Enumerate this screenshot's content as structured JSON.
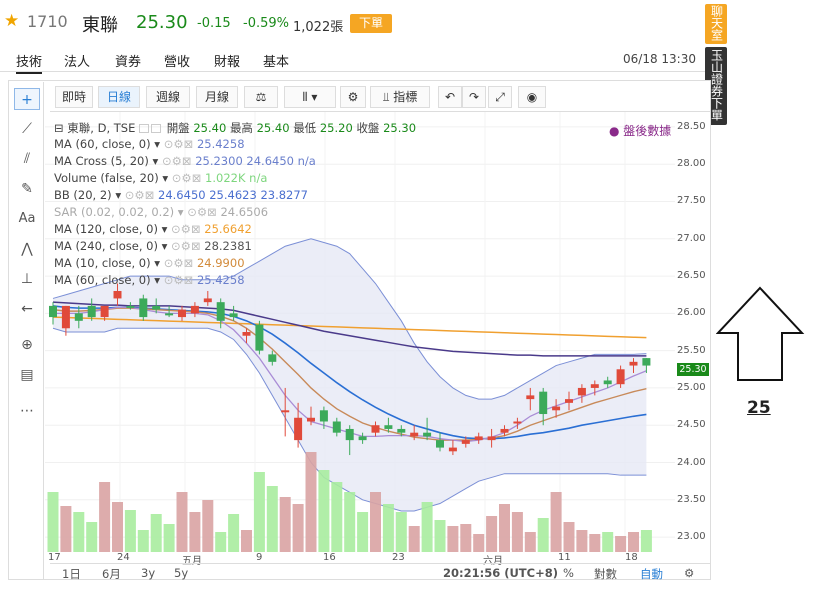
{
  "header": {
    "code": "1710",
    "name": "東聯",
    "price": "25.30",
    "change": "-0.15",
    "percent": "-0.59%",
    "volume": "1,022張",
    "sell_label": "下單"
  },
  "tabs": [
    "技術",
    "法人",
    "資券",
    "營收",
    "財報",
    "基本"
  ],
  "datetime": "06/18 13:30",
  "side_buttons": {
    "chat": "聊天室",
    "order": "玉山證券下單"
  },
  "toolbar": {
    "periods": [
      "即時",
      "日線",
      "週線",
      "月線"
    ],
    "indicators_label": "指標"
  },
  "legend": {
    "main": {
      "label": "東聯, D, TSE",
      "open_label": "開盤",
      "open": "25.40",
      "high_label": "最高",
      "high": "25.40",
      "low_label": "最低",
      "low": "25.20",
      "close_label": "收盤",
      "close": "25.30"
    },
    "after_hours": "盤後數據",
    "rows": [
      {
        "label": "MA (60, close, 0)",
        "values": "25.4258",
        "color": "#6a7fcc"
      },
      {
        "label": "MA Cross (5, 20)",
        "values": "25.2300  24.6450  n/a",
        "color": "#6a7fcc"
      },
      {
        "label": "Volume (false, 20)",
        "values": "1.022K  n/a",
        "color": "#7ed67e"
      },
      {
        "label": "BB (20, 2)",
        "values": "24.6450  25.4623  23.8277",
        "color": "#4a6fcf"
      },
      {
        "label": "SAR (0.02, 0.02, 0.2)",
        "values": "24.6506",
        "color": "#aaaaaa"
      },
      {
        "label": "MA (120, close, 0)",
        "values": "25.6642",
        "color": "#f0a030"
      },
      {
        "label": "MA (240, close, 0)",
        "values": "28.2381",
        "color": "#555555"
      },
      {
        "label": "MA (10, close, 0)",
        "values": "24.9900",
        "color": "#d28a3a"
      },
      {
        "label": "MA (60, close, 0)",
        "values": "25.4258",
        "color": "#6a7fcc"
      }
    ]
  },
  "price_axis": [
    "28.50",
    "28.00",
    "27.50",
    "27.00",
    "26.50",
    "26.00",
    "25.50",
    "25.00",
    "24.50",
    "24.00",
    "23.50",
    "23.00"
  ],
  "last_price": "25.30",
  "x_axis": [
    "17",
    "24",
    "五月",
    "9",
    "16",
    "23",
    "六月",
    "11",
    "18"
  ],
  "bottom": {
    "ranges": [
      "1日",
      "6月",
      "3y",
      "5y"
    ],
    "time": "20:21:56 (UTC+8)",
    "pct": "%",
    "log": "對數",
    "auto": "自動"
  },
  "annotation": "25",
  "colors": {
    "up": "#e04a3a",
    "down": "#3caa5a",
    "accent": "#f5a623"
  },
  "chart_data": {
    "type": "candlestick",
    "ylim": [
      22.8,
      28.7
    ],
    "candles": [
      {
        "o": 26.1,
        "h": 26.15,
        "c": 25.95,
        "l": 25.85,
        "up": false
      },
      {
        "o": 25.8,
        "h": 26.1,
        "c": 26.1,
        "l": 25.7,
        "up": true
      },
      {
        "o": 26.0,
        "h": 26.1,
        "c": 25.9,
        "l": 25.8,
        "up": false
      },
      {
        "o": 26.1,
        "h": 26.2,
        "c": 25.95,
        "l": 25.9,
        "up": false
      },
      {
        "o": 25.95,
        "h": 26.1,
        "c": 26.1,
        "l": 25.9,
        "up": true
      },
      {
        "o": 26.2,
        "h": 26.4,
        "c": 26.3,
        "l": 26.1,
        "up": true
      },
      {
        "o": 26.1,
        "h": 26.15,
        "c": 26.1,
        "l": 26.05,
        "up": false
      },
      {
        "o": 26.2,
        "h": 26.25,
        "c": 25.95,
        "l": 25.9,
        "up": false
      },
      {
        "o": 26.1,
        "h": 26.2,
        "c": 26.05,
        "l": 26.0,
        "up": false
      },
      {
        "o": 26.0,
        "h": 26.1,
        "c": 26.0,
        "l": 25.95,
        "up": false
      },
      {
        "o": 25.95,
        "h": 26.1,
        "c": 26.05,
        "l": 25.9,
        "up": true
      },
      {
        "o": 26.0,
        "h": 26.15,
        "c": 26.1,
        "l": 25.95,
        "up": true
      },
      {
        "o": 26.2,
        "h": 26.3,
        "c": 26.15,
        "l": 26.1,
        "up": true
      },
      {
        "o": 26.15,
        "h": 26.2,
        "c": 25.9,
        "l": 25.8,
        "up": false
      },
      {
        "o": 26.0,
        "h": 26.1,
        "c": 25.95,
        "l": 25.9,
        "up": false
      },
      {
        "o": 25.75,
        "h": 25.8,
        "c": 25.7,
        "l": 25.6,
        "up": true
      },
      {
        "o": 25.85,
        "h": 25.9,
        "c": 25.5,
        "l": 25.45,
        "up": false
      },
      {
        "o": 25.45,
        "h": 25.5,
        "c": 25.35,
        "l": 25.3,
        "up": false
      },
      {
        "o": 24.7,
        "h": 25.0,
        "c": 24.7,
        "l": 24.35,
        "up": true
      },
      {
        "o": 24.6,
        "h": 24.8,
        "c": 24.3,
        "l": 24.2,
        "up": true
      },
      {
        "o": 24.55,
        "h": 24.75,
        "c": 24.6,
        "l": 24.5,
        "up": true
      },
      {
        "o": 24.7,
        "h": 24.75,
        "c": 24.55,
        "l": 24.45,
        "up": false
      },
      {
        "o": 24.55,
        "h": 24.6,
        "c": 24.4,
        "l": 24.35,
        "up": false
      },
      {
        "o": 24.45,
        "h": 24.5,
        "c": 24.3,
        "l": 24.1,
        "up": false
      },
      {
        "o": 24.35,
        "h": 24.4,
        "c": 24.3,
        "l": 24.25,
        "up": false
      },
      {
        "o": 24.4,
        "h": 24.55,
        "c": 24.5,
        "l": 24.35,
        "up": true
      },
      {
        "o": 24.5,
        "h": 24.6,
        "c": 24.45,
        "l": 24.4,
        "up": false
      },
      {
        "o": 24.45,
        "h": 24.5,
        "c": 24.4,
        "l": 24.35,
        "up": false
      },
      {
        "o": 24.4,
        "h": 24.5,
        "c": 24.35,
        "l": 24.3,
        "up": true
      },
      {
        "o": 24.35,
        "h": 24.6,
        "c": 24.4,
        "l": 24.3,
        "up": false
      },
      {
        "o": 24.3,
        "h": 24.4,
        "c": 24.2,
        "l": 24.15,
        "up": false
      },
      {
        "o": 24.2,
        "h": 24.3,
        "c": 24.15,
        "l": 24.1,
        "up": true
      },
      {
        "o": 24.25,
        "h": 24.35,
        "c": 24.3,
        "l": 24.2,
        "up": true
      },
      {
        "o": 24.3,
        "h": 24.4,
        "c": 24.35,
        "l": 24.25,
        "up": true
      },
      {
        "o": 24.35,
        "h": 24.45,
        "c": 24.3,
        "l": 24.2,
        "up": true
      },
      {
        "o": 24.4,
        "h": 24.5,
        "c": 24.45,
        "l": 24.35,
        "up": true
      },
      {
        "o": 24.55,
        "h": 24.6,
        "c": 24.55,
        "l": 24.45,
        "up": true
      },
      {
        "o": 24.9,
        "h": 25.0,
        "c": 24.85,
        "l": 24.7,
        "up": true
      },
      {
        "o": 24.65,
        "h": 25.0,
        "c": 24.95,
        "l": 24.5,
        "up": false
      },
      {
        "o": 24.7,
        "h": 24.85,
        "c": 24.75,
        "l": 24.6,
        "up": true
      },
      {
        "o": 24.8,
        "h": 24.95,
        "c": 24.85,
        "l": 24.7,
        "up": true
      },
      {
        "o": 24.9,
        "h": 25.05,
        "c": 25.0,
        "l": 24.8,
        "up": true
      },
      {
        "o": 25.0,
        "h": 25.1,
        "c": 25.05,
        "l": 24.9,
        "up": true
      },
      {
        "o": 25.1,
        "h": 25.15,
        "c": 25.05,
        "l": 25.0,
        "up": false
      },
      {
        "o": 25.05,
        "h": 25.3,
        "c": 25.25,
        "l": 25.0,
        "up": true
      },
      {
        "o": 25.3,
        "h": 25.4,
        "c": 25.35,
        "l": 25.2,
        "up": true
      },
      {
        "o": 25.4,
        "h": 25.4,
        "c": 25.3,
        "l": 25.2,
        "up": false
      }
    ]
  }
}
